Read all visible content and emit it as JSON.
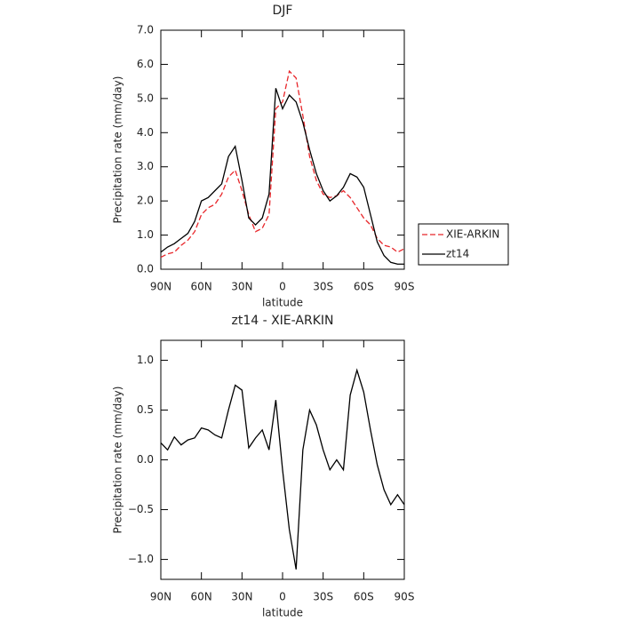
{
  "chart_data": [
    {
      "type": "line",
      "title": "DJF",
      "xlabel": "latitude",
      "ylabel": "Precipitation rate (mm/day)",
      "x": [
        90,
        85,
        80,
        75,
        70,
        65,
        60,
        55,
        50,
        45,
        40,
        35,
        30,
        25,
        20,
        15,
        10,
        5,
        0,
        -5,
        -10,
        -15,
        -20,
        -25,
        -30,
        -35,
        -40,
        -45,
        -50,
        -55,
        -60,
        -65,
        -70,
        -75,
        -80,
        -85,
        -90
      ],
      "xlim": [
        90,
        -90
      ],
      "xticks": [
        {
          "value": 90,
          "label": "90N"
        },
        {
          "value": 60,
          "label": "60N"
        },
        {
          "value": 30,
          "label": "30N"
        },
        0,
        {
          "value": -30,
          "label": "30S"
        },
        {
          "value": -60,
          "label": "60S"
        },
        {
          "value": -90,
          "label": "90S"
        }
      ],
      "ylim": [
        0,
        7
      ],
      "yticks": [
        {
          "value": 0,
          "label": "0.0"
        },
        {
          "value": 1,
          "label": "1.0"
        },
        {
          "value": 2,
          "label": "2.0"
        },
        {
          "value": 3,
          "label": "3.0"
        },
        {
          "value": 4,
          "label": "4.0"
        },
        {
          "value": 5,
          "label": "5.0"
        },
        {
          "value": 6,
          "label": "6.0"
        },
        {
          "value": 7,
          "label": "7.0"
        }
      ],
      "legend": "right",
      "series": [
        {
          "name": "XIE-ARKIN",
          "color": "#e8262a",
          "dash": true,
          "values": [
            0.35,
            0.45,
            0.5,
            0.7,
            0.85,
            1.1,
            1.6,
            1.8,
            1.9,
            2.2,
            2.7,
            2.9,
            2.3,
            1.6,
            1.1,
            1.2,
            1.6,
            4.7,
            4.9,
            5.8,
            5.6,
            4.5,
            3.3,
            2.6,
            2.2,
            2.1,
            2.15,
            2.3,
            2.1,
            1.8,
            1.5,
            1.3,
            0.9,
            0.7,
            0.65,
            0.5,
            0.6
          ]
        },
        {
          "name": "zt14",
          "color": "#000000",
          "dash": false,
          "values": [
            0.5,
            0.65,
            0.75,
            0.9,
            1.05,
            1.4,
            2.0,
            2.1,
            2.3,
            2.5,
            3.3,
            3.6,
            2.6,
            1.5,
            1.3,
            1.5,
            2.2,
            5.3,
            4.7,
            5.1,
            4.9,
            4.3,
            3.5,
            2.8,
            2.3,
            2.0,
            2.15,
            2.4,
            2.8,
            2.7,
            2.4,
            1.6,
            0.8,
            0.4,
            0.2,
            0.15,
            0.15
          ]
        }
      ]
    },
    {
      "type": "line",
      "title": "zt14 - XIE-ARKIN",
      "xlabel": "latitude",
      "ylabel": "Precipitation rate (mm/day)",
      "x": [
        90,
        85,
        80,
        75,
        70,
        65,
        60,
        55,
        50,
        45,
        40,
        35,
        30,
        25,
        20,
        15,
        10,
        5,
        0,
        -5,
        -10,
        -15,
        -20,
        -25,
        -30,
        -35,
        -40,
        -45,
        -50,
        -55,
        -60,
        -65,
        -70,
        -75,
        -80,
        -85,
        -90
      ],
      "xlim": [
        90,
        -90
      ],
      "xticks": [
        {
          "value": 90,
          "label": "90N"
        },
        {
          "value": 60,
          "label": "60N"
        },
        {
          "value": 30,
          "label": "30N"
        },
        0,
        {
          "value": -30,
          "label": "30S"
        },
        {
          "value": -60,
          "label": "60S"
        },
        {
          "value": -90,
          "label": "90S"
        }
      ],
      "ylim": [
        -1.2,
        1.2
      ],
      "yticks": [
        {
          "value": -1,
          "label": "−1.0"
        },
        {
          "value": -0.5,
          "label": "−0.5"
        },
        {
          "value": 0,
          "label": "0.0"
        },
        {
          "value": 0.5,
          "label": "0.5"
        },
        {
          "value": 1,
          "label": "1.0"
        }
      ],
      "series": [
        {
          "color": "#000000",
          "dash": false,
          "values": [
            0.17,
            0.1,
            0.23,
            0.15,
            0.2,
            0.22,
            0.32,
            0.3,
            0.25,
            0.22,
            0.5,
            0.75,
            0.7,
            0.12,
            0.22,
            0.3,
            0.1,
            0.6,
            -0.1,
            -0.7,
            -1.1,
            0.1,
            0.5,
            0.35,
            0.1,
            -0.1,
            0.0,
            -0.1,
            0.65,
            0.9,
            0.68,
            0.3,
            -0.05,
            -0.3,
            -0.45,
            -0.35,
            -0.45
          ]
        }
      ]
    }
  ]
}
